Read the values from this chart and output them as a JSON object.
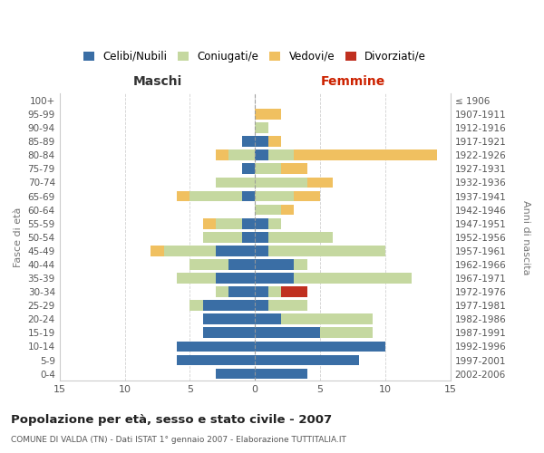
{
  "age_groups": [
    "0-4",
    "5-9",
    "10-14",
    "15-19",
    "20-24",
    "25-29",
    "30-34",
    "35-39",
    "40-44",
    "45-49",
    "50-54",
    "55-59",
    "60-64",
    "65-69",
    "70-74",
    "75-79",
    "80-84",
    "85-89",
    "90-94",
    "95-99",
    "100+"
  ],
  "birth_years": [
    "2002-2006",
    "1997-2001",
    "1992-1996",
    "1987-1991",
    "1982-1986",
    "1977-1981",
    "1972-1976",
    "1967-1971",
    "1962-1966",
    "1957-1961",
    "1952-1956",
    "1947-1951",
    "1942-1946",
    "1937-1941",
    "1932-1936",
    "1927-1931",
    "1922-1926",
    "1917-1921",
    "1912-1916",
    "1907-1911",
    "≤ 1906"
  ],
  "maschi": {
    "celibi": [
      3,
      6,
      6,
      4,
      4,
      4,
      2,
      3,
      2,
      3,
      1,
      1,
      0,
      1,
      0,
      1,
      0,
      1,
      0,
      0,
      0
    ],
    "coniugati": [
      0,
      0,
      0,
      0,
      0,
      1,
      1,
      3,
      3,
      4,
      3,
      2,
      0,
      4,
      3,
      0,
      2,
      0,
      0,
      0,
      0
    ],
    "vedovi": [
      0,
      0,
      0,
      0,
      0,
      0,
      0,
      0,
      0,
      1,
      0,
      1,
      0,
      1,
      0,
      0,
      1,
      0,
      0,
      0,
      0
    ],
    "divorziati": [
      0,
      0,
      0,
      0,
      0,
      0,
      0,
      0,
      0,
      0,
      0,
      0,
      0,
      0,
      0,
      0,
      0,
      0,
      0,
      0,
      0
    ]
  },
  "femmine": {
    "nubili": [
      4,
      8,
      10,
      5,
      2,
      1,
      1,
      3,
      3,
      1,
      1,
      1,
      0,
      0,
      0,
      0,
      1,
      1,
      0,
      0,
      0
    ],
    "coniugate": [
      0,
      0,
      0,
      4,
      7,
      3,
      1,
      9,
      1,
      9,
      5,
      1,
      2,
      3,
      4,
      2,
      2,
      0,
      1,
      0,
      0
    ],
    "vedove": [
      0,
      0,
      0,
      0,
      0,
      0,
      0,
      0,
      0,
      0,
      0,
      0,
      1,
      2,
      2,
      2,
      11,
      1,
      0,
      2,
      0
    ],
    "divorziate": [
      0,
      0,
      0,
      0,
      0,
      0,
      2,
      0,
      0,
      0,
      0,
      0,
      0,
      0,
      0,
      0,
      0,
      0,
      0,
      0,
      0
    ]
  },
  "colors": {
    "celibi": "#3a6ea5",
    "coniugati": "#c5d8a0",
    "vedovi": "#f0c060",
    "divorziati": "#c03020"
  },
  "legend_labels": [
    "Celibi/Nubili",
    "Coniugati/e",
    "Vedovi/e",
    "Divorziati/e"
  ],
  "title": "Popolazione per età, sesso e stato civile - 2007",
  "subtitle": "COMUNE DI VALDA (TN) - Dati ISTAT 1° gennaio 2007 - Elaborazione TUTTITALIA.IT",
  "xlabel_left": "Maschi",
  "xlabel_right": "Femmine",
  "ylabel_left": "Fasce di età",
  "ylabel_right": "Anni di nascita",
  "xlim": 15,
  "background_color": "#ffffff",
  "grid_color": "#cccccc"
}
